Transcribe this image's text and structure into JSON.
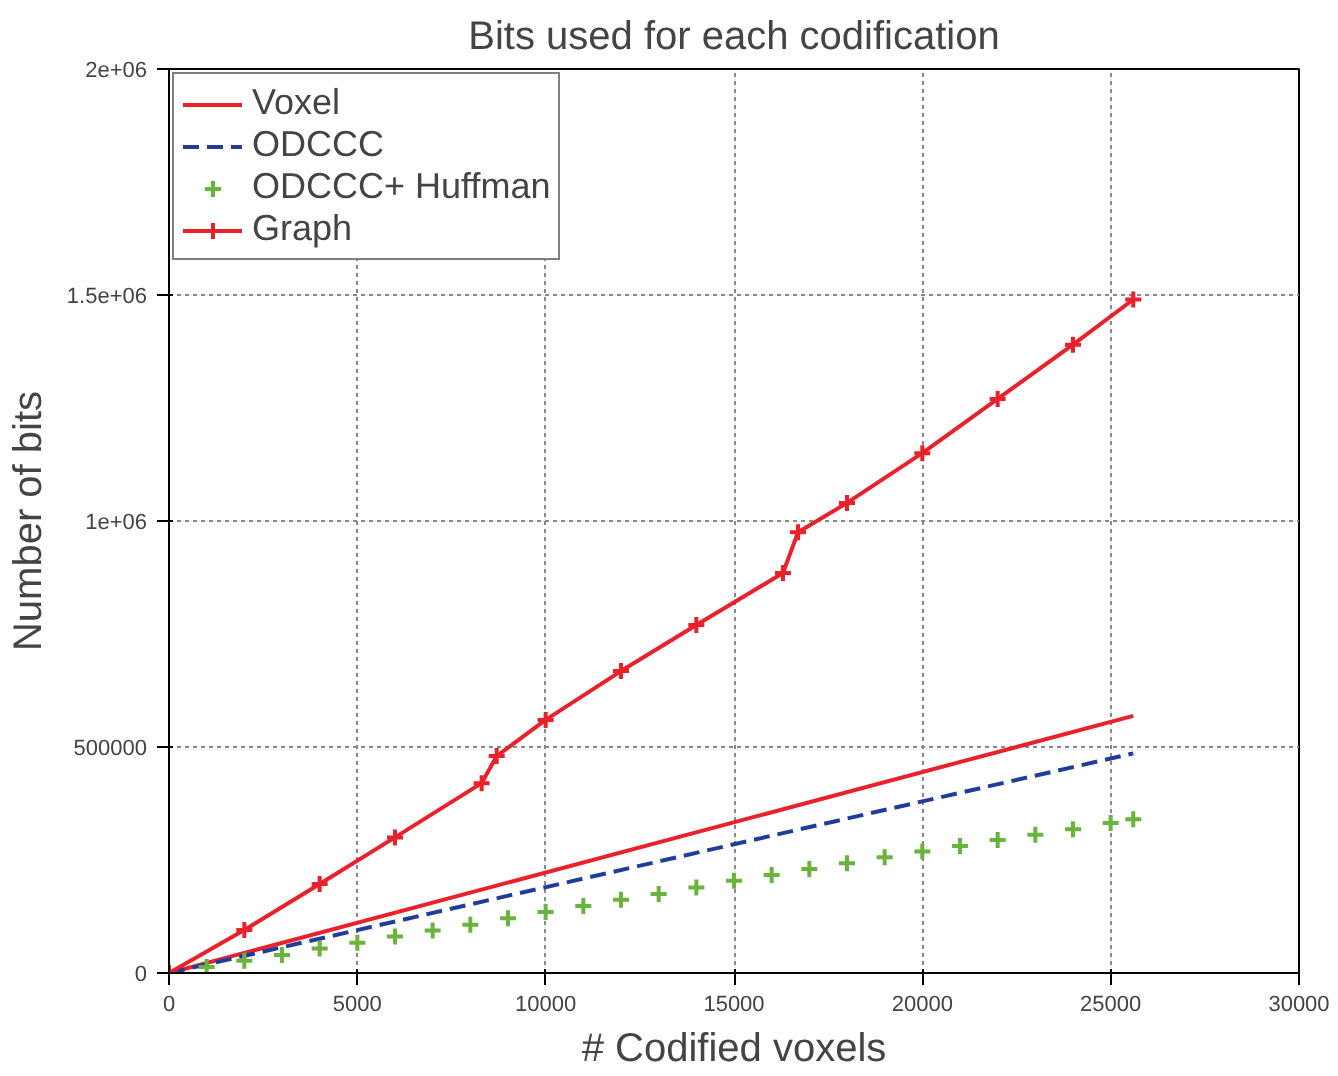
{
  "chart_data": {
    "type": "line",
    "title": "Bits used for each codification",
    "xlabel": "# Codified voxels",
    "ylabel": "Number of bits",
    "xlim": [
      0,
      30000
    ],
    "xticks": [
      0,
      5000,
      10000,
      15000,
      20000,
      25000,
      30000
    ],
    "ylim": [
      0,
      2000000
    ],
    "yticks": [
      0,
      500000,
      {
        "value": 1000000,
        "label": "1e+06"
      },
      {
        "value": 1500000,
        "label": "1.5e+06"
      },
      {
        "value": 2000000,
        "label": "2e+06"
      }
    ],
    "grid": true,
    "legend": "top left",
    "series": [
      {
        "name": "Voxel",
        "color": "#e8212b",
        "line_style": "solid",
        "x": [
          0,
          25600
        ],
        "values": [
          0,
          569000
        ]
      },
      {
        "name": "ODCCC",
        "color": "#1f3d99",
        "line_style": "dashed",
        "x": [
          0,
          25600
        ],
        "values": [
          0,
          486000
        ]
      },
      {
        "name": "ODCCC+ Huffman",
        "type": "scatter",
        "color": "#6ab33e",
        "marker": "cross",
        "x": [
          1000,
          2000,
          3000,
          4000,
          5000,
          6000,
          7000,
          8000,
          9000,
          10000,
          11000,
          12000,
          13000,
          14000,
          15000,
          16000,
          17000,
          18000,
          19000,
          20000,
          21000,
          22000,
          23000,
          24000,
          25000,
          25600
        ],
        "values": [
          13000,
          27000,
          40000,
          54000,
          67000,
          81000,
          94000,
          107000,
          121000,
          135000,
          148000,
          162000,
          175000,
          189000,
          204000,
          217000,
          230000,
          243000,
          256000,
          269000,
          281000,
          294000,
          306000,
          318000,
          332000,
          340000
        ]
      },
      {
        "name": "Graph",
        "color": "#e8212b",
        "line_style": "solid",
        "marker": "cross",
        "x": [
          0,
          2000,
          4000,
          6000,
          8300,
          8700,
          10000,
          12000,
          14000,
          16300,
          16700,
          18000,
          20000,
          22000,
          24000,
          25600
        ],
        "values": [
          0,
          95000,
          197000,
          300000,
          420000,
          480000,
          560000,
          668000,
          770000,
          885000,
          975000,
          1040000,
          1150000,
          1270000,
          1390000,
          1490000
        ]
      }
    ]
  }
}
